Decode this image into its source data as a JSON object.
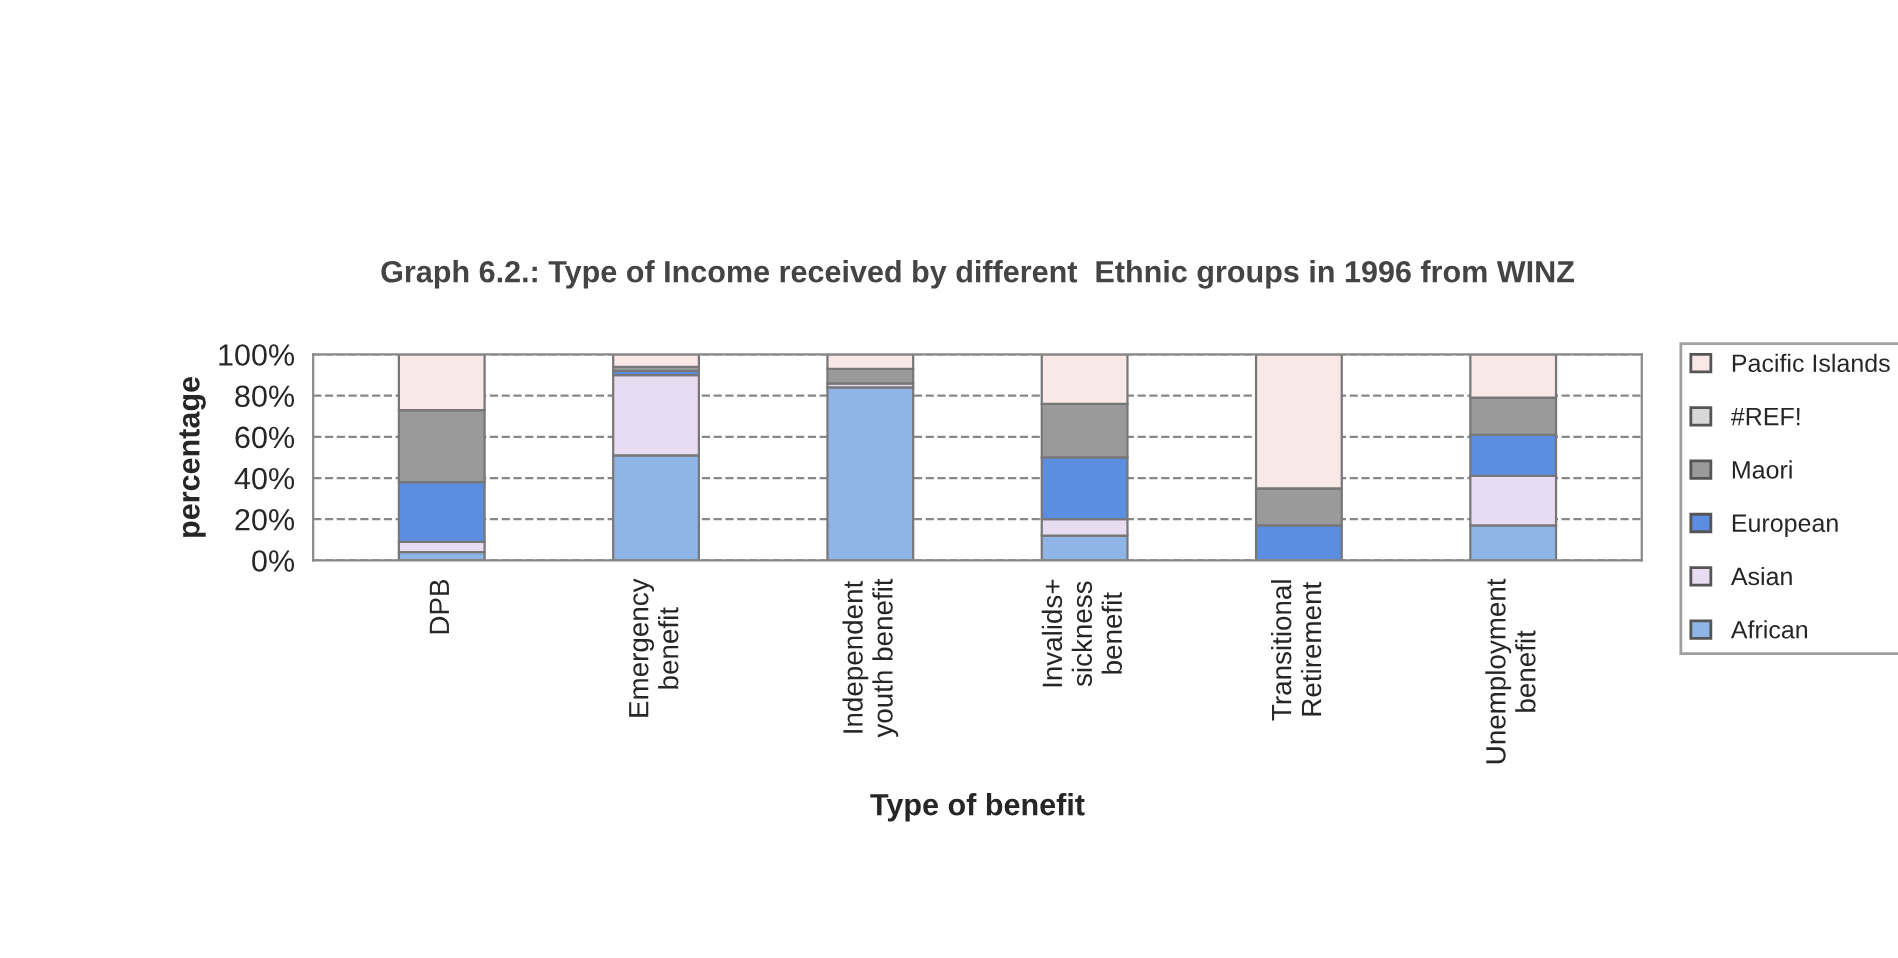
{
  "chart_data": {
    "type": "bar",
    "stacked": true,
    "title": "Graph 6.2.: Type of Income received by different  Ethnic groups in 1996 from WINZ",
    "xlabel": "Type of benefit",
    "ylabel": "percentage",
    "categories": [
      "DPB",
      "Emergency\nbenefit",
      "Independent\nyouth benefit",
      "Invalids+\nsickness\nbenefit",
      "Transitional\nRetirement",
      "Unemployment\nbenefit"
    ],
    "series": [
      {
        "name": "African",
        "color": "#8fb4e6",
        "values": [
          4,
          51,
          84,
          12,
          0,
          17
        ]
      },
      {
        "name": "Asian",
        "color": "#e8dcf2",
        "values": [
          5,
          39,
          2,
          8,
          0,
          24
        ]
      },
      {
        "name": "European",
        "color": "#5b8de0",
        "values": [
          29,
          2,
          0,
          30,
          17,
          20
        ]
      },
      {
        "name": "Maori",
        "color": "#9a9a9a",
        "values": [
          35,
          2,
          7,
          26,
          18,
          18
        ]
      },
      {
        "name": "#REF!",
        "color": "#d8d8d8",
        "values": [
          0,
          0,
          0,
          0,
          0,
          0
        ]
      },
      {
        "name": "Pacific Islands",
        "color": "#f8e8e8",
        "values": [
          27,
          6,
          7,
          24,
          65,
          21
        ]
      }
    ],
    "ylim": [
      0,
      100
    ],
    "yticks": [
      {
        "value": 0,
        "label": "0%"
      },
      {
        "value": 20,
        "label": "20%"
      },
      {
        "value": 40,
        "label": "40%"
      },
      {
        "value": 60,
        "label": "60%"
      },
      {
        "value": 80,
        "label": "80%"
      },
      {
        "value": 100,
        "label": "100%"
      }
    ],
    "grid": "y",
    "legend": "right"
  }
}
